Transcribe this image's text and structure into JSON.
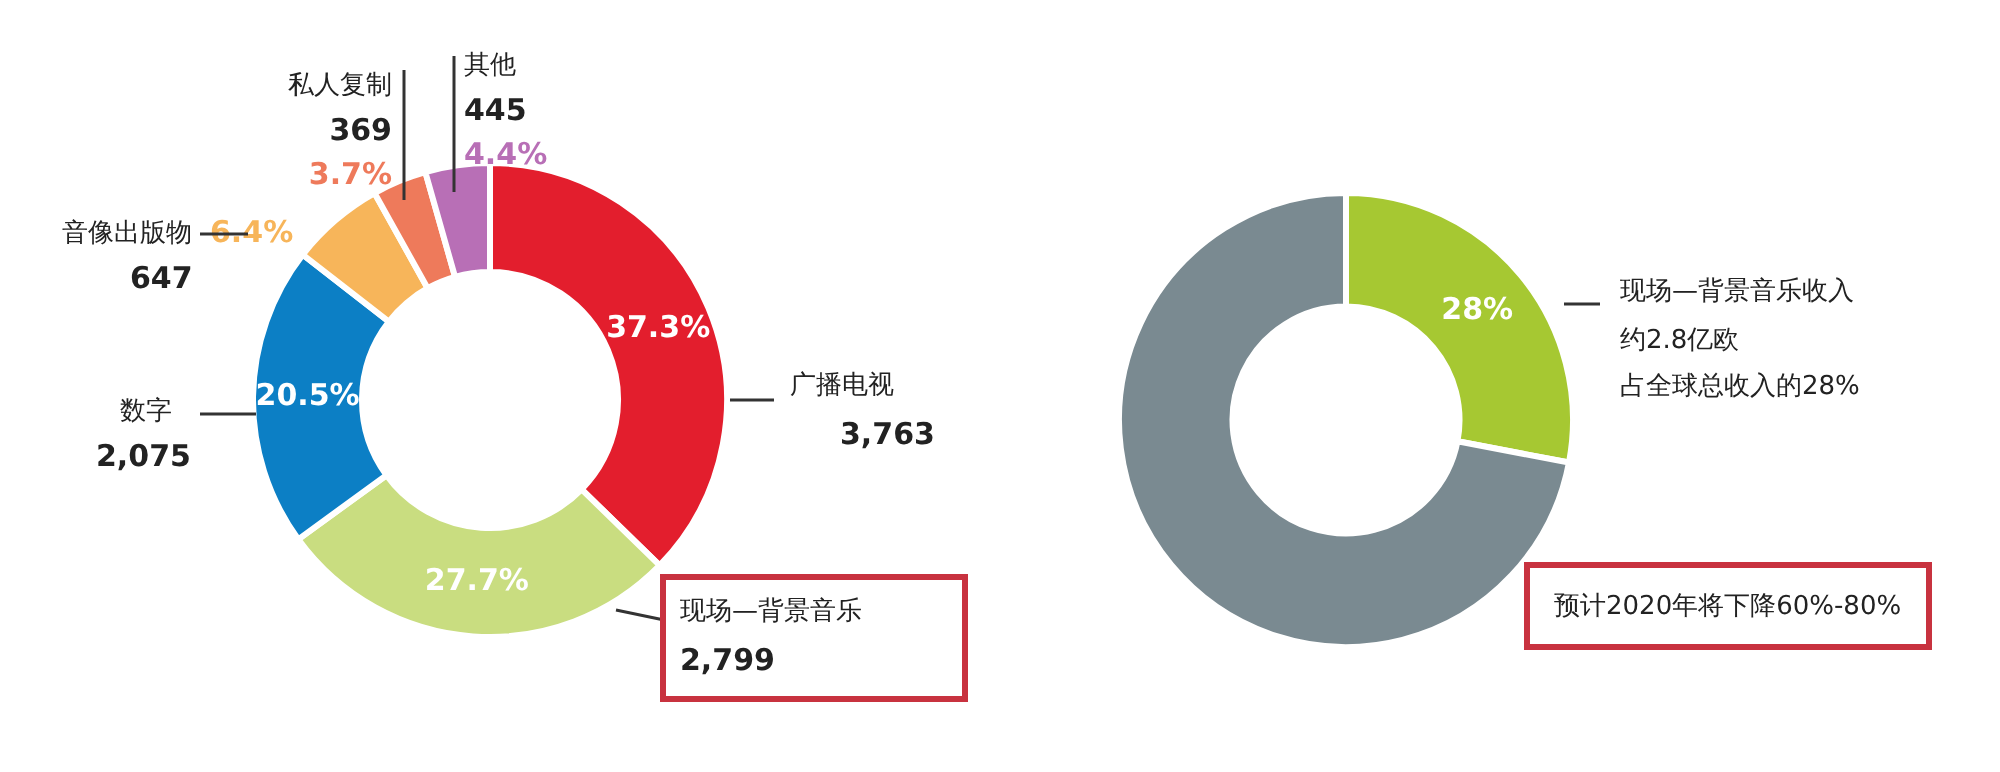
{
  "chart_data": [
    {
      "type": "donut",
      "categories": [
        "广播电视",
        "现场—背景音乐",
        "数字",
        "音像出版物",
        "私人复制",
        "其他"
      ],
      "values": [
        37.3,
        27.7,
        20.5,
        6.4,
        3.7,
        4.4
      ],
      "colors": [
        "#e31e2d",
        "#c9dd80",
        "#0c7fc5",
        "#f7b55a",
        "#ee7a5b",
        "#b86fb6"
      ],
      "value_labels": [
        "37.3%",
        "27.7%",
        "20.5%",
        "6.4%",
        "3.7%",
        "4.4%"
      ],
      "annotations": [
        {
          "text": "3,763",
          "x": "广播电视"
        },
        {
          "text": "2,799",
          "x": "现场—背景音乐"
        },
        {
          "text": "2,075",
          "x": "数字"
        },
        {
          "text": "647",
          "x": "音像出版物"
        },
        {
          "text": "369",
          "x": "私人复制"
        },
        {
          "text": "445",
          "x": "其他"
        }
      ]
    },
    {
      "type": "donut",
      "categories": [
        "现场—背景音乐收入",
        null
      ],
      "values": [
        28,
        72
      ],
      "colors": [
        "#a6c832",
        "#7a8a91"
      ],
      "value_labels": [
        "28%",
        null
      ],
      "annotations": [
        "约2.8亿欧",
        "占全球总收入的28%",
        "预计2020年将下降60%-80%"
      ]
    }
  ]
}
